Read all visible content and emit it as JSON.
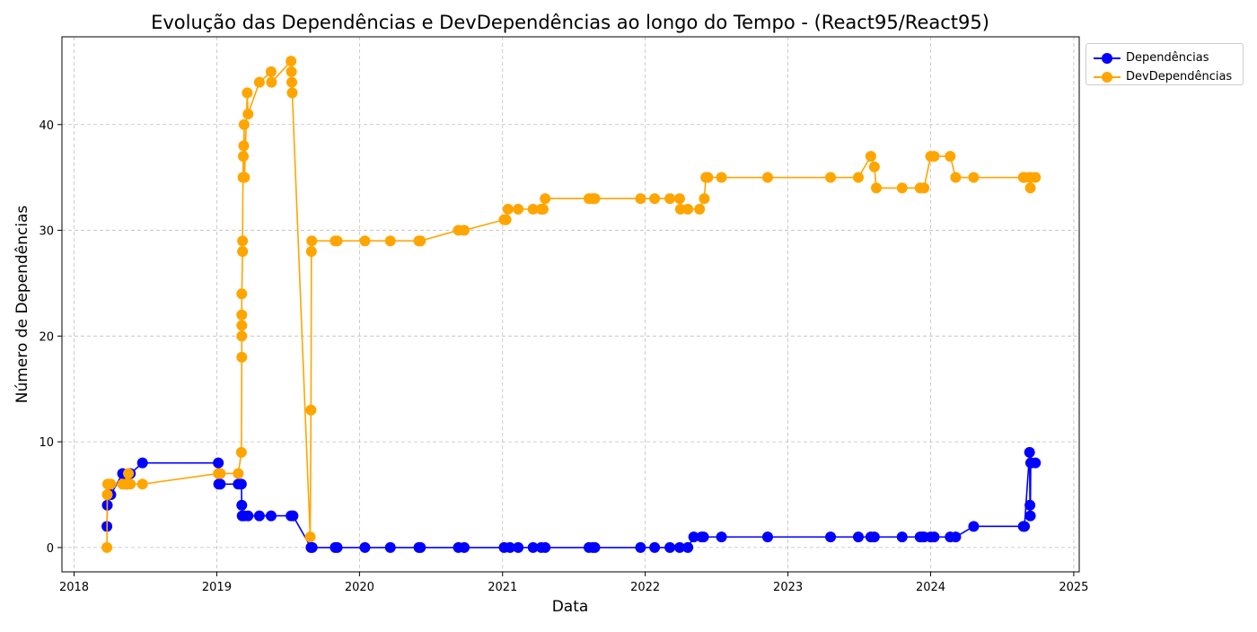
{
  "chart_data": {
    "type": "line",
    "title": "Evolução das Dependências e DevDependências ao longo do Tempo - (React95/React95)",
    "xlabel": "Data",
    "ylabel": "Número de Dependências",
    "xlim": [
      "2017-12-01",
      "2025-01-15"
    ],
    "ylim": [
      -2.3,
      48.3
    ],
    "x_ticks": [
      "2018",
      "2019",
      "2020",
      "2021",
      "2022",
      "2023",
      "2024",
      "2025"
    ],
    "y_ticks": [
      0,
      10,
      20,
      30,
      40
    ],
    "grid": true,
    "legend_position": "outside-top-right",
    "series": [
      {
        "name": "Dependências",
        "color": "#0000ff",
        "marker": "circle",
        "points": [
          [
            "2018-03-26",
            2
          ],
          [
            "2018-03-27",
            4
          ],
          [
            "2018-03-28",
            5
          ],
          [
            "2018-04-05",
            5
          ],
          [
            "2018-05-05",
            7
          ],
          [
            "2018-05-15",
            6
          ],
          [
            "2018-05-25",
            7
          ],
          [
            "2018-06-25",
            8
          ],
          [
            "2019-01-05",
            8
          ],
          [
            "2019-01-06",
            6
          ],
          [
            "2019-01-10",
            6
          ],
          [
            "2019-02-25",
            6
          ],
          [
            "2019-03-05",
            6
          ],
          [
            "2019-03-06",
            4
          ],
          [
            "2019-03-07",
            3
          ],
          [
            "2019-03-12",
            3
          ],
          [
            "2019-03-22",
            3
          ],
          [
            "2019-04-20",
            3
          ],
          [
            "2019-05-20",
            3
          ],
          [
            "2019-07-10",
            3
          ],
          [
            "2019-07-15",
            3
          ],
          [
            "2019-08-30",
            0
          ],
          [
            "2019-09-02",
            0
          ],
          [
            "2019-10-31",
            0
          ],
          [
            "2019-11-05",
            0
          ],
          [
            "2020-01-15",
            0
          ],
          [
            "2020-03-20",
            0
          ],
          [
            "2020-06-01",
            0
          ],
          [
            "2020-06-05",
            0
          ],
          [
            "2020-09-10",
            0
          ],
          [
            "2020-09-25",
            0
          ],
          [
            "2021-01-05",
            0
          ],
          [
            "2021-01-20",
            0
          ],
          [
            "2021-02-10",
            0
          ],
          [
            "2021-03-20",
            0
          ],
          [
            "2021-04-10",
            0
          ],
          [
            "2021-04-20",
            0
          ],
          [
            "2021-08-10",
            0
          ],
          [
            "2021-08-20",
            0
          ],
          [
            "2021-08-25",
            0
          ],
          [
            "2021-12-20",
            0
          ],
          [
            "2022-01-25",
            0
          ],
          [
            "2022-03-05",
            0
          ],
          [
            "2022-03-30",
            0
          ],
          [
            "2022-04-20",
            0
          ],
          [
            "2022-05-05",
            1
          ],
          [
            "2022-05-25",
            1
          ],
          [
            "2022-05-30",
            1
          ],
          [
            "2022-07-15",
            1
          ],
          [
            "2022-11-10",
            1
          ],
          [
            "2023-04-20",
            1
          ],
          [
            "2023-06-30",
            1
          ],
          [
            "2023-08-01",
            1
          ],
          [
            "2023-08-10",
            1
          ],
          [
            "2023-10-20",
            1
          ],
          [
            "2023-12-05",
            1
          ],
          [
            "2023-12-10",
            1
          ],
          [
            "2023-12-15",
            1
          ],
          [
            "2024-01-01",
            1
          ],
          [
            "2024-01-10",
            1
          ],
          [
            "2024-02-20",
            1
          ],
          [
            "2024-03-05",
            1
          ],
          [
            "2024-04-20",
            2
          ],
          [
            "2024-08-25",
            2
          ],
          [
            "2024-08-28",
            2
          ],
          [
            "2024-09-10",
            9
          ],
          [
            "2024-09-11",
            4
          ],
          [
            "2024-09-12",
            3
          ],
          [
            "2024-09-13",
            8
          ],
          [
            "2024-09-14",
            8
          ],
          [
            "2024-09-25",
            8
          ]
        ]
      },
      {
        "name": "DevDependências",
        "color": "#ffa500",
        "marker": "circle",
        "points": [
          [
            "2018-03-26",
            0
          ],
          [
            "2018-03-27",
            5
          ],
          [
            "2018-03-28",
            6
          ],
          [
            "2018-04-05",
            6
          ],
          [
            "2018-05-05",
            6
          ],
          [
            "2018-05-15",
            6
          ],
          [
            "2018-05-20",
            7
          ],
          [
            "2018-05-25",
            6
          ],
          [
            "2018-06-25",
            6
          ],
          [
            "2019-01-05",
            7
          ],
          [
            "2019-01-10",
            7
          ],
          [
            "2019-02-25",
            7
          ],
          [
            "2019-03-05",
            9
          ],
          [
            "2019-03-06",
            18
          ],
          [
            "2019-03-06",
            20
          ],
          [
            "2019-03-06",
            21
          ],
          [
            "2019-03-06",
            22
          ],
          [
            "2019-03-06",
            24
          ],
          [
            "2019-03-08",
            28
          ],
          [
            "2019-03-08",
            29
          ],
          [
            "2019-03-09",
            35
          ],
          [
            "2019-03-10",
            37
          ],
          [
            "2019-03-11",
            38
          ],
          [
            "2019-03-12",
            40
          ],
          [
            "2019-03-13",
            35
          ],
          [
            "2019-03-20",
            43
          ],
          [
            "2019-03-22",
            41
          ],
          [
            "2019-04-20",
            44
          ],
          [
            "2019-05-20",
            45
          ],
          [
            "2019-05-21",
            44
          ],
          [
            "2019-07-10",
            46
          ],
          [
            "2019-07-11",
            45
          ],
          [
            "2019-07-12",
            44
          ],
          [
            "2019-07-13",
            43
          ],
          [
            "2019-08-28",
            1
          ],
          [
            "2019-08-30",
            13
          ],
          [
            "2019-08-31",
            28
          ],
          [
            "2019-09-01",
            29
          ],
          [
            "2019-10-31",
            29
          ],
          [
            "2019-11-05",
            29
          ],
          [
            "2020-01-15",
            29
          ],
          [
            "2020-03-20",
            29
          ],
          [
            "2020-06-01",
            29
          ],
          [
            "2020-06-05",
            29
          ],
          [
            "2020-09-10",
            30
          ],
          [
            "2020-09-25",
            30
          ],
          [
            "2021-01-05",
            31
          ],
          [
            "2021-01-10",
            31
          ],
          [
            "2021-01-15",
            32
          ],
          [
            "2021-02-10",
            32
          ],
          [
            "2021-03-20",
            32
          ],
          [
            "2021-04-10",
            32
          ],
          [
            "2021-04-15",
            32
          ],
          [
            "2021-04-20",
            33
          ],
          [
            "2021-08-10",
            33
          ],
          [
            "2021-08-20",
            33
          ],
          [
            "2021-08-25",
            33
          ],
          [
            "2021-12-20",
            33
          ],
          [
            "2022-01-25",
            33
          ],
          [
            "2022-03-05",
            33
          ],
          [
            "2022-03-30",
            33
          ],
          [
            "2022-04-01",
            32
          ],
          [
            "2022-04-20",
            32
          ],
          [
            "2022-05-20",
            32
          ],
          [
            "2022-06-01",
            33
          ],
          [
            "2022-06-05",
            35
          ],
          [
            "2022-06-10",
            35
          ],
          [
            "2022-07-15",
            35
          ],
          [
            "2022-11-10",
            35
          ],
          [
            "2023-04-20",
            35
          ],
          [
            "2023-06-30",
            35
          ],
          [
            "2023-08-01",
            37
          ],
          [
            "2023-08-10",
            36
          ],
          [
            "2023-08-15",
            34
          ],
          [
            "2023-10-20",
            34
          ],
          [
            "2023-12-05",
            34
          ],
          [
            "2023-12-15",
            34
          ],
          [
            "2024-01-01",
            37
          ],
          [
            "2024-01-10",
            37
          ],
          [
            "2024-02-20",
            37
          ],
          [
            "2024-03-05",
            35
          ],
          [
            "2024-04-20",
            35
          ],
          [
            "2024-08-25",
            35
          ],
          [
            "2024-08-28",
            35
          ],
          [
            "2024-09-10",
            35
          ],
          [
            "2024-09-12",
            34
          ],
          [
            "2024-09-13",
            35
          ],
          [
            "2024-09-25",
            35
          ]
        ]
      }
    ]
  }
}
